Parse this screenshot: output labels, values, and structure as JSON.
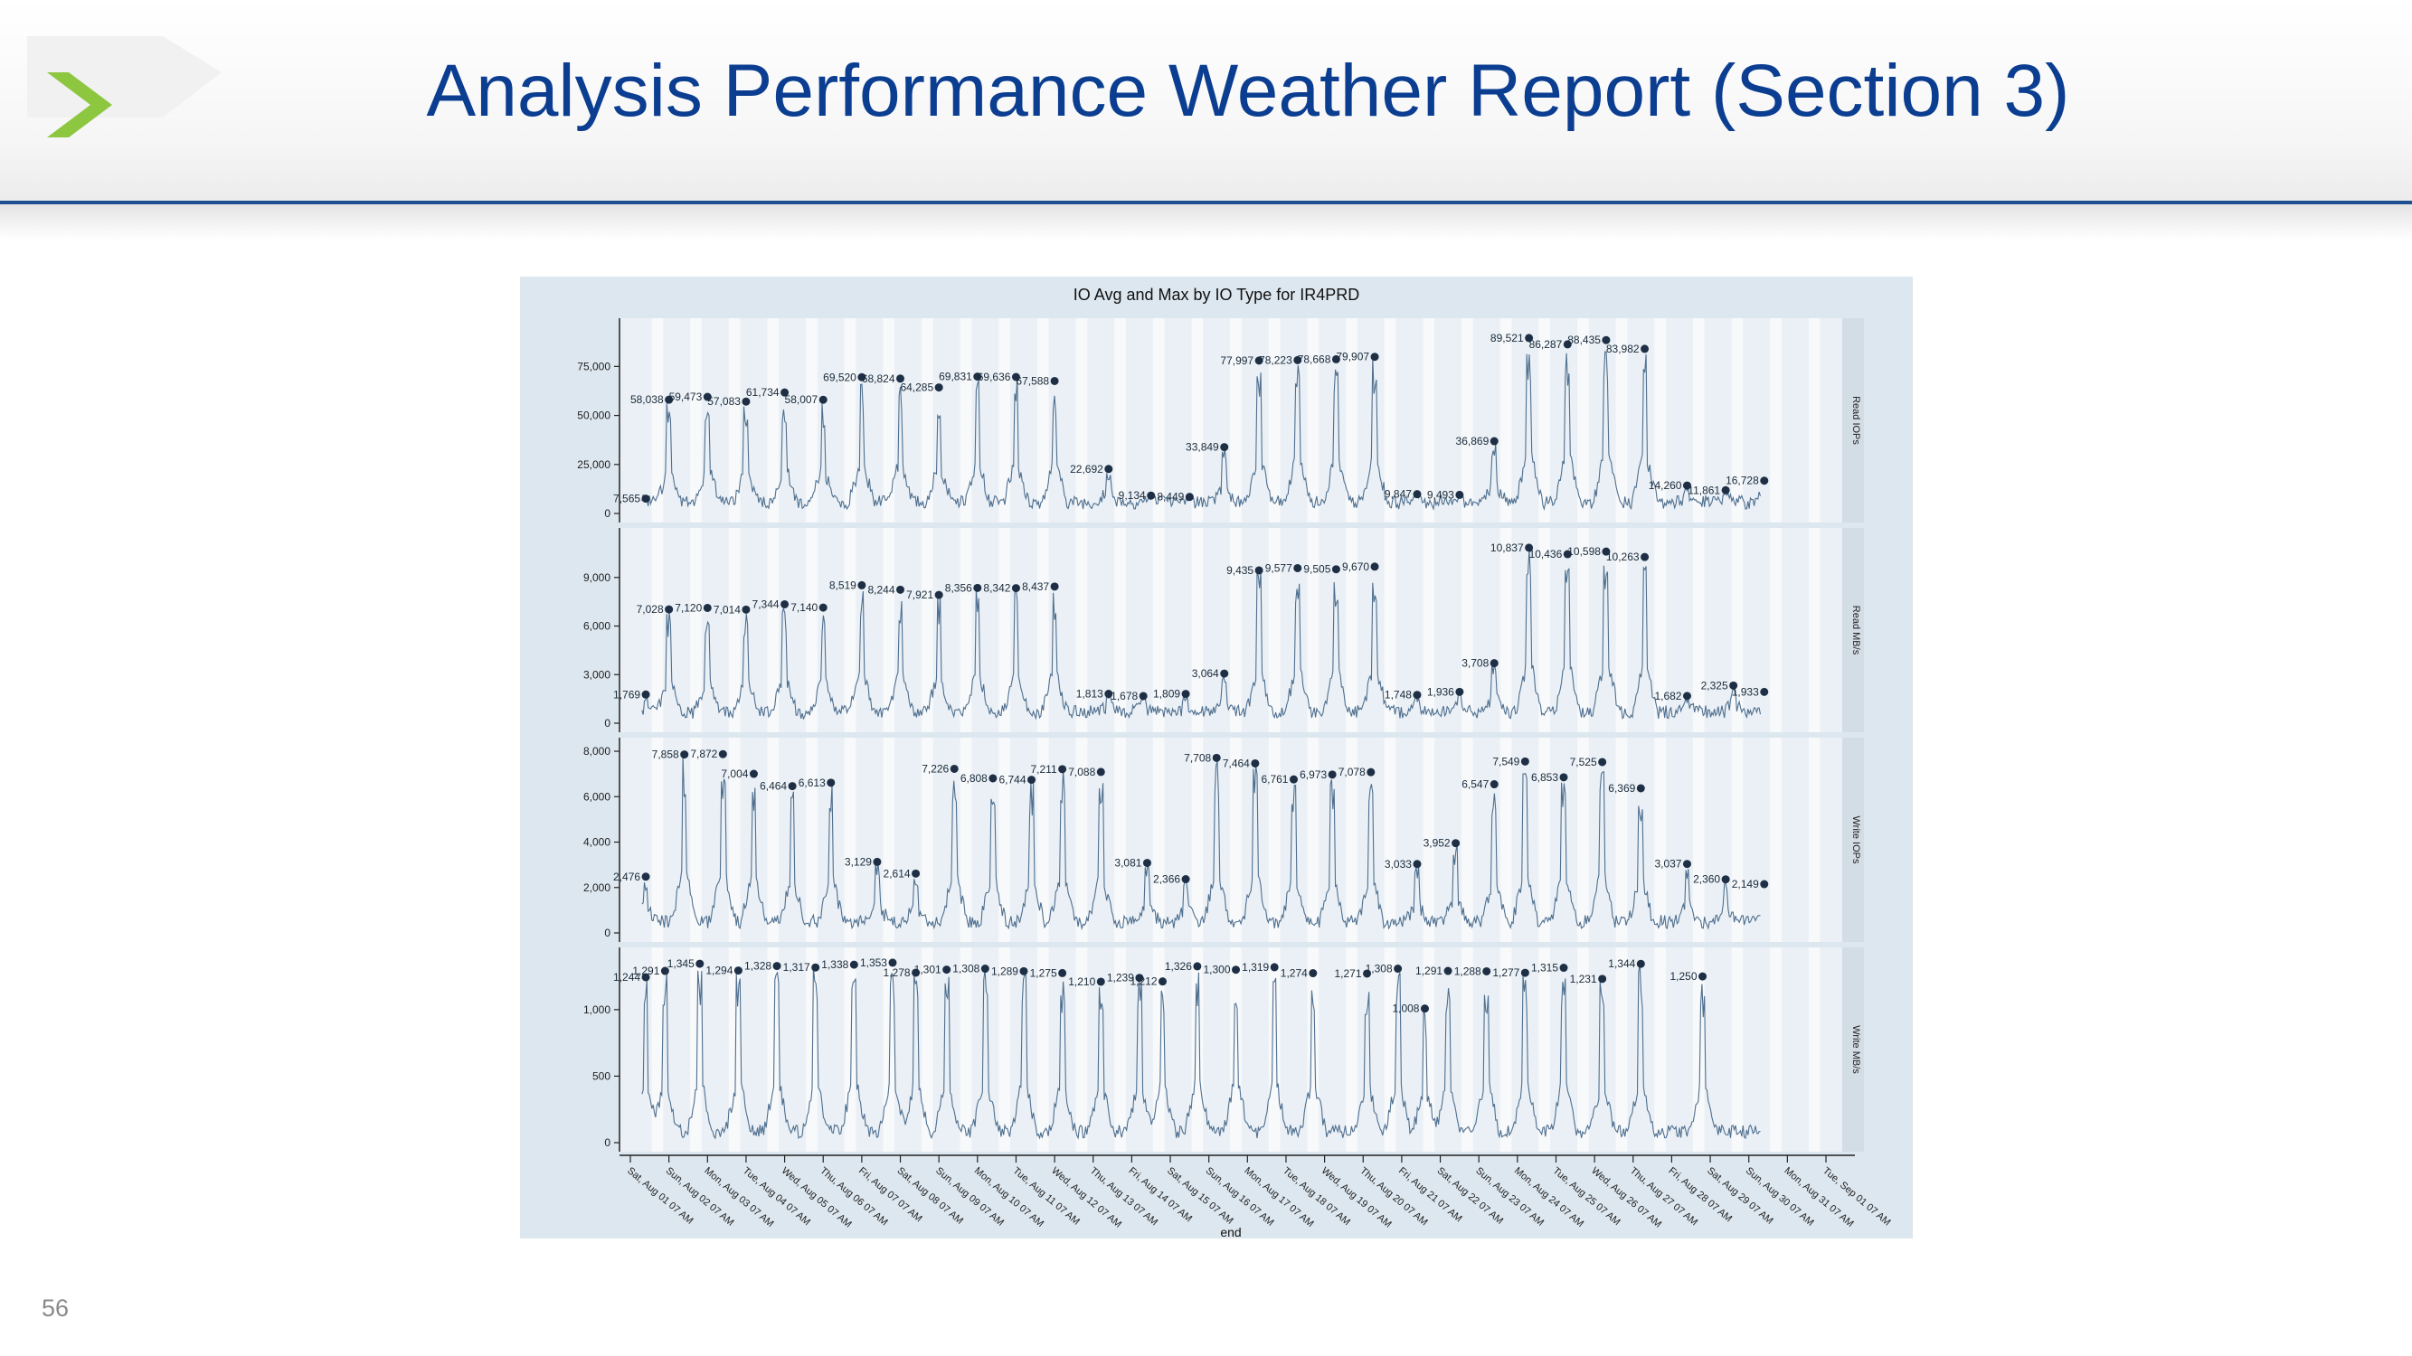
{
  "slide": {
    "title": "Analysis Performance Weather Report (Section 3)",
    "page_number": "56",
    "accent_color": "#0b3d91",
    "logo_color": "#8dc63f",
    "logo_icon": "chevron-right-icon"
  },
  "chart_data": {
    "type": "line",
    "title": "IO Avg and Max by IO Type for IR4PRD",
    "xlabel": "end",
    "x_ticks": [
      "Sat, Aug 01 07 AM",
      "Sun, Aug 02 07 AM",
      "Mon, Aug 03 07 AM",
      "Tue, Aug 04 07 AM",
      "Wed, Aug 05 07 AM",
      "Thu, Aug 06 07 AM",
      "Fri, Aug 07 07 AM",
      "Sat, Aug 08 07 AM",
      "Sun, Aug 09 07 AM",
      "Mon, Aug 10 07 AM",
      "Tue, Aug 11 07 AM",
      "Wed, Aug 12 07 AM",
      "Thu, Aug 13 07 AM",
      "Fri, Aug 14 07 AM",
      "Sat, Aug 15 07 AM",
      "Sun, Aug 16 07 AM",
      "Mon, Aug 17 07 AM",
      "Tue, Aug 18 07 AM",
      "Wed, Aug 19 07 AM",
      "Thu, Aug 20 07 AM",
      "Fri, Aug 21 07 AM",
      "Sat, Aug 22 07 AM",
      "Sun, Aug 23 07 AM",
      "Mon, Aug 24 07 AM",
      "Tue, Aug 25 07 AM",
      "Wed, Aug 26 07 AM",
      "Thu, Aug 27 07 AM",
      "Fri, Aug 28 07 AM",
      "Sat, Aug 29 07 AM",
      "Sun, Aug 30 07 AM",
      "Mon, Aug 31 07 AM",
      "Tue, Sep 01 07 AM"
    ],
    "line_color": "#4f6f8f",
    "marker_color": "#1e2f45",
    "panels": [
      {
        "name": "Read IOPs",
        "ylim": [
          0,
          95000
        ],
        "yticks": [
          0,
          25000,
          50000,
          75000
        ],
        "ytick_labels": [
          "0",
          "25,000",
          "50,000",
          "75,000"
        ],
        "max_points": [
          {
            "x": 0.4,
            "y": 7565,
            "label": "7,565"
          },
          {
            "x": 1.0,
            "y": 58038,
            "label": "58,038"
          },
          {
            "x": 2.0,
            "y": 59473,
            "label": "59,473"
          },
          {
            "x": 3.0,
            "y": 57083,
            "label": "57,083"
          },
          {
            "x": 4.0,
            "y": 61734,
            "label": "61,734"
          },
          {
            "x": 5.0,
            "y": 58007,
            "label": "58,007"
          },
          {
            "x": 6.0,
            "y": 69520,
            "label": "69,520"
          },
          {
            "x": 7.0,
            "y": 68824,
            "label": "68,824"
          },
          {
            "x": 8.0,
            "y": 64285,
            "label": "64,285"
          },
          {
            "x": 9.0,
            "y": 69831,
            "label": "69,831"
          },
          {
            "x": 10.0,
            "y": 69636,
            "label": "69,636"
          },
          {
            "x": 11.0,
            "y": 67588,
            "label": "67,588"
          },
          {
            "x": 12.4,
            "y": 22692,
            "label": "22,692"
          },
          {
            "x": 13.5,
            "y": 9134,
            "label": "9,134"
          },
          {
            "x": 14.5,
            "y": 8449,
            "label": "8,449"
          },
          {
            "x": 15.4,
            "y": 33849,
            "label": "33,849"
          },
          {
            "x": 16.3,
            "y": 77997,
            "label": "77,997"
          },
          {
            "x": 17.3,
            "y": 78223,
            "label": "78,223"
          },
          {
            "x": 18.3,
            "y": 78668,
            "label": "78,668"
          },
          {
            "x": 19.3,
            "y": 79907,
            "label": "79,907"
          },
          {
            "x": 20.4,
            "y": 9847,
            "label": "9,847"
          },
          {
            "x": 21.5,
            "y": 9493,
            "label": "9,493"
          },
          {
            "x": 22.4,
            "y": 36869,
            "label": "36,869"
          },
          {
            "x": 23.3,
            "y": 89521,
            "label": "89,521"
          },
          {
            "x": 24.3,
            "y": 86287,
            "label": "86,287"
          },
          {
            "x": 25.3,
            "y": 88435,
            "label": "88,435"
          },
          {
            "x": 26.3,
            "y": 83982,
            "label": "83,982"
          },
          {
            "x": 27.4,
            "y": 14260,
            "label": "14,260"
          },
          {
            "x": 28.4,
            "y": 11861,
            "label": "11,861"
          },
          {
            "x": 29.4,
            "y": 16728,
            "label": "16,728"
          }
        ]
      },
      {
        "name": "Read MB/s",
        "ylim": [
          0,
          11500
        ],
        "yticks": [
          0,
          3000,
          6000,
          9000
        ],
        "ytick_labels": [
          "0",
          "3,000",
          "6,000",
          "9,000"
        ],
        "max_points": [
          {
            "x": 0.4,
            "y": 1769,
            "label": "1,769"
          },
          {
            "x": 1.0,
            "y": 7028,
            "label": "7,028"
          },
          {
            "x": 2.0,
            "y": 7120,
            "label": "7,120"
          },
          {
            "x": 3.0,
            "y": 7014,
            "label": "7,014"
          },
          {
            "x": 4.0,
            "y": 7344,
            "label": "7,344"
          },
          {
            "x": 5.0,
            "y": 7140,
            "label": "7,140"
          },
          {
            "x": 6.0,
            "y": 8519,
            "label": "8,519"
          },
          {
            "x": 7.0,
            "y": 8244,
            "label": "8,244"
          },
          {
            "x": 8.0,
            "y": 7921,
            "label": "7,921"
          },
          {
            "x": 9.0,
            "y": 8356,
            "label": "8,356"
          },
          {
            "x": 10.0,
            "y": 8342,
            "label": "8,342"
          },
          {
            "x": 11.0,
            "y": 8437,
            "label": "8,437"
          },
          {
            "x": 12.4,
            "y": 1813,
            "label": "1,813"
          },
          {
            "x": 13.3,
            "y": 1678,
            "label": "1,678"
          },
          {
            "x": 14.4,
            "y": 1809,
            "label": "1,809"
          },
          {
            "x": 15.4,
            "y": 3064,
            "label": "3,064"
          },
          {
            "x": 16.3,
            "y": 9435,
            "label": "9,435"
          },
          {
            "x": 17.3,
            "y": 9577,
            "label": "9,577"
          },
          {
            "x": 18.3,
            "y": 9505,
            "label": "9,505"
          },
          {
            "x": 19.3,
            "y": 9670,
            "label": "9,670"
          },
          {
            "x": 20.4,
            "y": 1748,
            "label": "1,748"
          },
          {
            "x": 21.5,
            "y": 1936,
            "label": "1,936"
          },
          {
            "x": 22.4,
            "y": 3708,
            "label": "3,708"
          },
          {
            "x": 23.3,
            "y": 10837,
            "label": "10,837"
          },
          {
            "x": 24.3,
            "y": 10436,
            "label": "10,436"
          },
          {
            "x": 25.3,
            "y": 10598,
            "label": "10,598"
          },
          {
            "x": 26.3,
            "y": 10263,
            "label": "10,263"
          },
          {
            "x": 27.4,
            "y": 1682,
            "label": "1,682"
          },
          {
            "x": 28.6,
            "y": 2325,
            "label": "2,325"
          },
          {
            "x": 29.4,
            "y": 1933,
            "label": "1,933"
          }
        ]
      },
      {
        "name": "Write IOPs",
        "ylim": [
          0,
          8200
        ],
        "yticks": [
          0,
          2000,
          4000,
          6000,
          8000
        ],
        "ytick_labels": [
          "0",
          "2,000",
          "4,000",
          "6,000",
          "8,000"
        ],
        "max_points": [
          {
            "x": 0.4,
            "y": 2476,
            "label": "2,476"
          },
          {
            "x": 1.4,
            "y": 7858,
            "label": "7,858"
          },
          {
            "x": 2.4,
            "y": 7872,
            "label": "7,872"
          },
          {
            "x": 3.2,
            "y": 7004,
            "label": "7,004"
          },
          {
            "x": 4.2,
            "y": 6464,
            "label": "6,464"
          },
          {
            "x": 5.2,
            "y": 6613,
            "label": "6,613"
          },
          {
            "x": 6.4,
            "y": 3129,
            "label": "3,129"
          },
          {
            "x": 7.4,
            "y": 2614,
            "label": "2,614"
          },
          {
            "x": 8.4,
            "y": 7226,
            "label": "7,226"
          },
          {
            "x": 9.4,
            "y": 6808,
            "label": "6,808"
          },
          {
            "x": 10.4,
            "y": 6744,
            "label": "6,744"
          },
          {
            "x": 11.2,
            "y": 7211,
            "label": "7,211"
          },
          {
            "x": 12.2,
            "y": 7088,
            "label": "7,088"
          },
          {
            "x": 13.4,
            "y": 3081,
            "label": "3,081"
          },
          {
            "x": 14.4,
            "y": 2366,
            "label": "2,366"
          },
          {
            "x": 15.2,
            "y": 7708,
            "label": "7,708"
          },
          {
            "x": 16.2,
            "y": 7464,
            "label": "7,464"
          },
          {
            "x": 17.2,
            "y": 6761,
            "label": "6,761"
          },
          {
            "x": 18.2,
            "y": 6973,
            "label": "6,973"
          },
          {
            "x": 19.2,
            "y": 7078,
            "label": "7,078"
          },
          {
            "x": 20.4,
            "y": 3033,
            "label": "3,033"
          },
          {
            "x": 21.4,
            "y": 3952,
            "label": "3,952"
          },
          {
            "x": 22.4,
            "y": 6547,
            "label": "6,547"
          },
          {
            "x": 23.2,
            "y": 7549,
            "label": "7,549"
          },
          {
            "x": 24.2,
            "y": 6853,
            "label": "6,853"
          },
          {
            "x": 25.2,
            "y": 7525,
            "label": "7,525"
          },
          {
            "x": 26.2,
            "y": 6369,
            "label": "6,369"
          },
          {
            "x": 27.4,
            "y": 3037,
            "label": "3,037"
          },
          {
            "x": 28.4,
            "y": 2360,
            "label": "2,360"
          },
          {
            "x": 29.4,
            "y": 2149,
            "label": "2,149"
          }
        ]
      },
      {
        "name": "Write MB/s",
        "ylim": [
          0,
          1400
        ],
        "yticks": [
          0,
          500,
          1000
        ],
        "ytick_labels": [
          "0",
          "500",
          "1,000"
        ],
        "max_points": [
          {
            "x": 0.4,
            "y": 1244,
            "label": "1,244"
          },
          {
            "x": 0.9,
            "y": 1291,
            "label": "1,291"
          },
          {
            "x": 1.8,
            "y": 1345,
            "label": "1,345"
          },
          {
            "x": 2.8,
            "y": 1294,
            "label": "1,294"
          },
          {
            "x": 3.8,
            "y": 1328,
            "label": "1,328"
          },
          {
            "x": 4.8,
            "y": 1317,
            "label": "1,317"
          },
          {
            "x": 5.8,
            "y": 1338,
            "label": "1,338"
          },
          {
            "x": 6.8,
            "y": 1353,
            "label": "1,353"
          },
          {
            "x": 7.4,
            "y": 1278,
            "label": "1,278"
          },
          {
            "x": 8.2,
            "y": 1301,
            "label": "1,301"
          },
          {
            "x": 9.2,
            "y": 1308,
            "label": "1,308"
          },
          {
            "x": 10.2,
            "y": 1289,
            "label": "1,289"
          },
          {
            "x": 11.2,
            "y": 1275,
            "label": "1,275"
          },
          {
            "x": 12.2,
            "y": 1210,
            "label": "1,210"
          },
          {
            "x": 13.2,
            "y": 1239,
            "label": "1,239"
          },
          {
            "x": 13.8,
            "y": 1212,
            "label": "1,212"
          },
          {
            "x": 14.7,
            "y": 1326,
            "label": "1,326"
          },
          {
            "x": 15.7,
            "y": 1300,
            "label": "1,300"
          },
          {
            "x": 16.7,
            "y": 1319,
            "label": "1,319"
          },
          {
            "x": 17.7,
            "y": 1274,
            "label": "1,274"
          },
          {
            "x": 19.1,
            "y": 1271,
            "label": "1,271"
          },
          {
            "x": 19.9,
            "y": 1308,
            "label": "1,308"
          },
          {
            "x": 20.6,
            "y": 1008,
            "label": "1,008"
          },
          {
            "x": 21.2,
            "y": 1291,
            "label": "1,291"
          },
          {
            "x": 22.2,
            "y": 1288,
            "label": "1,288"
          },
          {
            "x": 23.2,
            "y": 1277,
            "label": "1,277"
          },
          {
            "x": 24.2,
            "y": 1315,
            "label": "1,315"
          },
          {
            "x": 25.2,
            "y": 1231,
            "label": "1,231"
          },
          {
            "x": 26.2,
            "y": 1344,
            "label": "1,344"
          },
          {
            "x": 27.8,
            "y": 1250,
            "label": "1,250"
          }
        ]
      }
    ]
  }
}
